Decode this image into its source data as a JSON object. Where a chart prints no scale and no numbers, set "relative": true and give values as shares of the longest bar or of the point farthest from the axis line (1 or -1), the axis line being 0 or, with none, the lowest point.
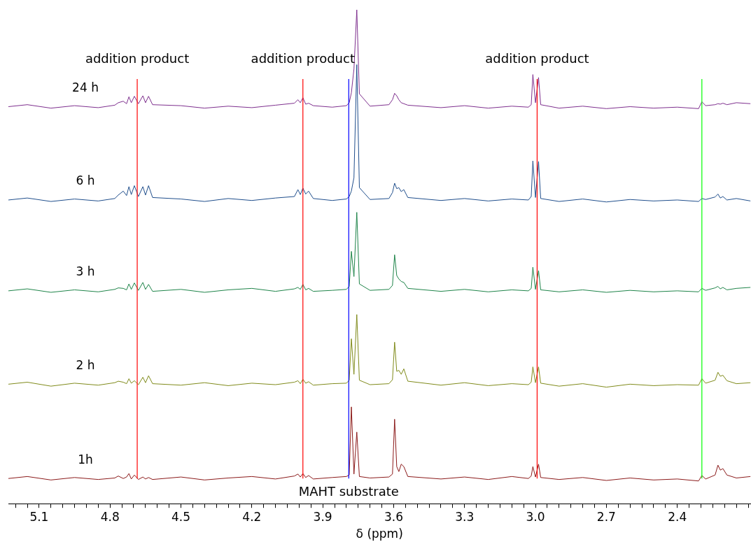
{
  "chart_data": {
    "type": "line",
    "relative": true,
    "xlabel": "δ (ppm)",
    "xlim": [
      5.23,
      2.09
    ],
    "xticks": [
      {
        "value": 5.2,
        "label": null
      },
      {
        "value": 5.15,
        "label": null
      },
      5.1,
      {
        "value": 5.05,
        "label": null
      },
      {
        "value": 5.0,
        "label": null
      },
      {
        "value": 4.95,
        "label": null
      },
      {
        "value": 4.9,
        "label": null
      },
      {
        "value": 4.85,
        "label": null
      },
      4.8,
      {
        "value": 4.75,
        "label": null
      },
      {
        "value": 4.7,
        "label": null
      },
      {
        "value": 4.65,
        "label": null
      },
      {
        "value": 4.6,
        "label": null
      },
      {
        "value": 4.55,
        "label": null
      },
      4.5,
      {
        "value": 4.45,
        "label": null
      },
      {
        "value": 4.4,
        "label": null
      },
      {
        "value": 4.35,
        "label": null
      },
      {
        "value": 4.3,
        "label": null
      },
      {
        "value": 4.25,
        "label": null
      },
      4.2,
      {
        "value": 4.15,
        "label": null
      },
      {
        "value": 4.1,
        "label": null
      },
      {
        "value": 4.05,
        "label": null
      },
      {
        "value": 4.0,
        "label": null
      },
      {
        "value": 3.95,
        "label": null
      },
      3.9,
      {
        "value": 3.85,
        "label": null
      },
      {
        "value": 3.8,
        "label": null
      },
      {
        "value": 3.75,
        "label": null
      },
      {
        "value": 3.7,
        "label": null
      },
      {
        "value": 3.65,
        "label": null
      },
      3.6,
      {
        "value": 3.55,
        "label": null
      },
      {
        "value": 3.5,
        "label": null
      },
      {
        "value": 3.45,
        "label": null
      },
      {
        "value": 3.4,
        "label": null
      },
      {
        "value": 3.35,
        "label": null
      },
      3.3,
      {
        "value": 3.25,
        "label": null
      },
      {
        "value": 3.2,
        "label": null
      },
      {
        "value": 3.15,
        "label": null
      },
      {
        "value": 3.1,
        "label": null
      },
      {
        "value": 3.05,
        "label": null
      },
      {
        "value": 3,
        "label": "3.0"
      },
      {
        "value": 2.95,
        "label": null
      },
      {
        "value": 2.9,
        "label": null
      },
      {
        "value": 2.85,
        "label": null
      },
      {
        "value": 2.8,
        "label": null
      },
      {
        "value": 2.75,
        "label": null
      },
      2.7,
      {
        "value": 2.65,
        "label": null
      },
      {
        "value": 2.6,
        "label": null
      },
      {
        "value": 2.55,
        "label": null
      },
      {
        "value": 2.5,
        "label": null
      },
      {
        "value": 2.45,
        "label": null
      },
      2.4,
      {
        "value": 2.35,
        "label": null
      },
      {
        "value": 2.3,
        "label": null
      },
      {
        "value": 2.25,
        "label": null
      },
      {
        "value": 2.2,
        "label": null
      },
      {
        "value": 2.15,
        "label": null
      },
      {
        "value": 2.1,
        "label": null
      }
    ],
    "x": [
      5.23,
      5.15,
      5.05,
      4.95,
      4.85,
      4.78,
      4.765,
      4.744,
      4.73,
      4.72,
      4.71,
      4.697,
      4.68,
      4.661,
      4.65,
      4.637,
      4.62,
      4.5,
      4.4,
      4.3,
      4.2,
      4.1,
      4.02,
      4.005,
      3.995,
      3.984,
      3.972,
      3.96,
      3.94,
      3.86,
      3.8,
      3.788,
      3.779,
      3.768,
      3.756,
      3.745,
      3.7,
      3.62,
      3.605,
      3.596,
      3.587,
      3.578,
      3.568,
      3.557,
      3.54,
      3.4,
      3.3,
      3.2,
      3.1,
      3.03,
      3.018,
      3.011,
      3.0,
      2.987,
      2.978,
      2.9,
      2.8,
      2.7,
      2.6,
      2.5,
      2.4,
      2.31,
      2.296,
      2.28,
      2.24,
      2.228,
      2.218,
      2.207,
      2.19,
      2.15,
      2.09
    ],
    "series": [
      {
        "name": "1h",
        "color": "#8b1a1a",
        "values": [
          0.051,
          0.055,
          0.048,
          0.053,
          0.049,
          0.052,
          0.056,
          0.051,
          0.054,
          0.061,
          0.05,
          0.058,
          0.049,
          0.054,
          0.05,
          0.053,
          0.049,
          0.054,
          0.048,
          0.052,
          0.055,
          0.05,
          0.056,
          0.06,
          0.054,
          0.061,
          0.053,
          0.057,
          0.05,
          0.053,
          0.055,
          0.058,
          0.196,
          0.06,
          0.145,
          0.055,
          0.052,
          0.054,
          0.06,
          0.171,
          0.075,
          0.065,
          0.08,
          0.075,
          0.055,
          0.05,
          0.054,
          0.049,
          0.055,
          0.051,
          0.056,
          0.075,
          0.054,
          0.08,
          0.053,
          0.049,
          0.053,
          0.047,
          0.052,
          0.048,
          0.05,
          0.046,
          0.057,
          0.05,
          0.058,
          0.078,
          0.068,
          0.071,
          0.058,
          0.052,
          0.055
        ]
      },
      {
        "name": "2 h",
        "color": "#7f8a1a",
        "values": [
          0.242,
          0.246,
          0.238,
          0.244,
          0.24,
          0.245,
          0.248,
          0.246,
          0.243,
          0.253,
          0.244,
          0.249,
          0.241,
          0.256,
          0.245,
          0.259,
          0.243,
          0.24,
          0.245,
          0.239,
          0.244,
          0.241,
          0.246,
          0.249,
          0.243,
          0.252,
          0.244,
          0.247,
          0.24,
          0.243,
          0.244,
          0.25,
          0.334,
          0.262,
          0.383,
          0.25,
          0.241,
          0.243,
          0.251,
          0.327,
          0.268,
          0.27,
          0.262,
          0.273,
          0.248,
          0.24,
          0.245,
          0.239,
          0.243,
          0.241,
          0.246,
          0.277,
          0.245,
          0.277,
          0.244,
          0.238,
          0.243,
          0.236,
          0.242,
          0.239,
          0.241,
          0.24,
          0.253,
          0.244,
          0.25,
          0.266,
          0.258,
          0.26,
          0.249,
          0.243,
          0.245
        ]
      },
      {
        "name": "3 h",
        "color": "#1e8449",
        "values": [
          0.431,
          0.435,
          0.428,
          0.433,
          0.429,
          0.434,
          0.437,
          0.436,
          0.433,
          0.445,
          0.434,
          0.447,
          0.432,
          0.448,
          0.434,
          0.444,
          0.43,
          0.434,
          0.428,
          0.433,
          0.436,
          0.43,
          0.435,
          0.438,
          0.434,
          0.444,
          0.433,
          0.436,
          0.43,
          0.432,
          0.434,
          0.44,
          0.511,
          0.46,
          0.59,
          0.445,
          0.432,
          0.434,
          0.442,
          0.504,
          0.462,
          0.455,
          0.45,
          0.448,
          0.436,
          0.43,
          0.434,
          0.429,
          0.433,
          0.431,
          0.436,
          0.479,
          0.434,
          0.472,
          0.433,
          0.429,
          0.433,
          0.428,
          0.432,
          0.429,
          0.431,
          0.429,
          0.436,
          0.432,
          0.437,
          0.44,
          0.435,
          0.438,
          0.433,
          0.436,
          0.438
        ]
      },
      {
        "name": "6 h",
        "color": "#1f4e8c",
        "values": [
          0.615,
          0.619,
          0.612,
          0.617,
          0.613,
          0.618,
          0.625,
          0.633,
          0.624,
          0.642,
          0.626,
          0.644,
          0.622,
          0.642,
          0.625,
          0.644,
          0.62,
          0.617,
          0.612,
          0.618,
          0.614,
          0.619,
          0.622,
          0.636,
          0.626,
          0.639,
          0.627,
          0.633,
          0.618,
          0.614,
          0.617,
          0.622,
          0.633,
          0.66,
          0.889,
          0.64,
          0.616,
          0.618,
          0.63,
          0.649,
          0.638,
          0.64,
          0.632,
          0.636,
          0.62,
          0.614,
          0.618,
          0.613,
          0.617,
          0.615,
          0.622,
          0.694,
          0.62,
          0.693,
          0.618,
          0.612,
          0.617,
          0.611,
          0.616,
          0.613,
          0.615,
          0.612,
          0.618,
          0.616,
          0.621,
          0.627,
          0.619,
          0.622,
          0.615,
          0.618,
          0.613
        ]
      },
      {
        "name": "24 h",
        "color": "#7e2f8e",
        "values": [
          0.804,
          0.808,
          0.801,
          0.806,
          0.802,
          0.807,
          0.812,
          0.815,
          0.81,
          0.824,
          0.812,
          0.825,
          0.81,
          0.826,
          0.812,
          0.825,
          0.808,
          0.806,
          0.801,
          0.805,
          0.802,
          0.807,
          0.811,
          0.818,
          0.812,
          0.822,
          0.809,
          0.811,
          0.806,
          0.803,
          0.806,
          0.812,
          0.832,
          0.88,
          1.0,
          0.83,
          0.805,
          0.808,
          0.818,
          0.831,
          0.826,
          0.818,
          0.812,
          0.81,
          0.807,
          0.802,
          0.806,
          0.801,
          0.805,
          0.803,
          0.808,
          0.869,
          0.812,
          0.863,
          0.808,
          0.801,
          0.805,
          0.8,
          0.804,
          0.801,
          0.803,
          0.8,
          0.814,
          0.806,
          0.808,
          0.81,
          0.809,
          0.811,
          0.808,
          0.812,
          0.81
        ]
      }
    ],
    "ref_lines": [
      {
        "axis": "x",
        "value": 4.685,
        "color": "#ff0000",
        "label": "addition product"
      },
      {
        "axis": "x",
        "value": 3.984,
        "color": "#ff0000",
        "label": "addition product"
      },
      {
        "axis": "x",
        "value": 2.993,
        "color": "#ff0000",
        "label": "addition product"
      },
      {
        "axis": "x",
        "value": 3.79,
        "color": "#0000ff",
        "label": "MAHT substrate"
      },
      {
        "axis": "x",
        "value": 2.296,
        "color": "#00ff00"
      }
    ],
    "grid": false,
    "legend": false,
    "marker": "none",
    "line_style": "solid"
  }
}
